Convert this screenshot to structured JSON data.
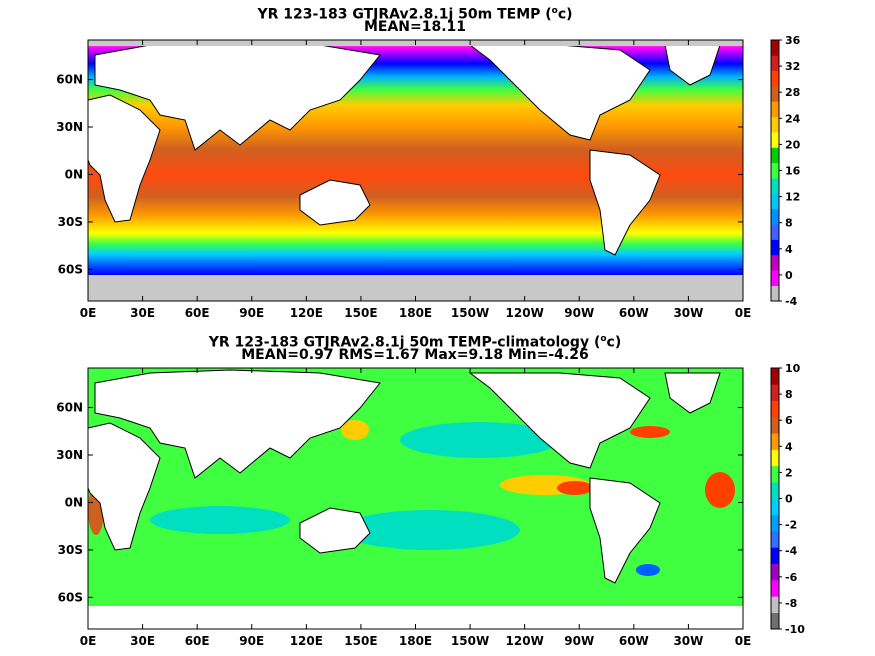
{
  "chart_data": [
    {
      "type": "heatmap",
      "title": "YR 123-183 GTJRAv2.8.1j 50m TEMP (",
      "title_unit": "o",
      "title_unit_tail": "c)",
      "subtitle": "MEAN=18.11",
      "x_ticks": [
        "0E",
        "30E",
        "60E",
        "90E",
        "120E",
        "150E",
        "180E",
        "150W",
        "120W",
        "90W",
        "60W",
        "30W",
        "0E"
      ],
      "y_ticks": [
        "60N",
        "30N",
        "0N",
        "30S",
        "60S"
      ],
      "y_tick_lat": [
        60,
        30,
        0,
        -30,
        -60
      ],
      "xlim": [
        0,
        360
      ],
      "ylim": [
        -80,
        85
      ],
      "colorbar_ticks": [
        36,
        32,
        28,
        24,
        20,
        16,
        12,
        8,
        4,
        0,
        -4
      ],
      "colorbar_colors": [
        "#c0c0c0",
        "#ff00ff",
        "#c000c0",
        "#0000ff",
        "#4060ff",
        "#0090ff",
        "#00c8ff",
        "#00e0c0",
        "#40ff40",
        "#00d000",
        "#ffff00",
        "#ffcc00",
        "#ff9900",
        "#d06020",
        "#ff4000",
        "#d02020",
        "#a00000"
      ]
    },
    {
      "type": "heatmap",
      "title": "YR 123-183 GTJRAv2.8.1j 50m TEMP-climatology (",
      "title_unit": "o",
      "title_unit_tail": "c)",
      "subtitle": "MEAN=0.97   RMS=1.67   Max=9.18   Min=-4.26",
      "x_ticks": [
        "0E",
        "30E",
        "60E",
        "90E",
        "120E",
        "150E",
        "180E",
        "150W",
        "120W",
        "90W",
        "60W",
        "30W",
        "0E"
      ],
      "y_ticks": [
        "60N",
        "30N",
        "0N",
        "30S",
        "60S"
      ],
      "y_tick_lat": [
        60,
        30,
        0,
        -30,
        -60
      ],
      "xlim": [
        0,
        360
      ],
      "ylim": [
        -80,
        85
      ],
      "colorbar_ticks": [
        10,
        8,
        6,
        4,
        2,
        0,
        -2,
        -4,
        -6,
        -8,
        -10
      ],
      "colorbar_colors": [
        "#707070",
        "#c0c0c0",
        "#ff00ff",
        "#a000c0",
        "#0000ff",
        "#3070ff",
        "#00a0ff",
        "#00d0ff",
        "#00e0c0",
        "#40ff40",
        "#ffff00",
        "#ff9900",
        "#d06020",
        "#ff4000",
        "#d02020",
        "#a00000"
      ]
    }
  ]
}
